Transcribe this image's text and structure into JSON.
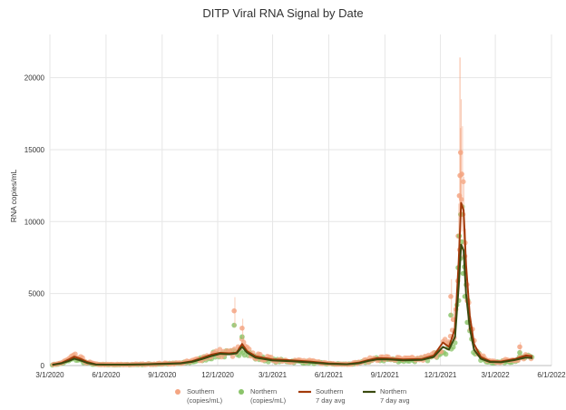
{
  "chart_data": {
    "type": "scatter",
    "title": "DITP Viral RNA Signal by Date",
    "xlabel": "",
    "ylabel": "RNA copies/mL",
    "x_ticks": [
      "3/1/2020",
      "6/1/2020",
      "9/1/2020",
      "12/1/2020",
      "3/1/2021",
      "6/1/2021",
      "9/1/2021",
      "12/1/2021",
      "3/1/2022",
      "6/1/2022"
    ],
    "x_range": [
      "2020-03-01",
      "2022-06-01"
    ],
    "ylim": [
      0,
      23000
    ],
    "y_ticks": [
      0,
      5000,
      10000,
      15000,
      20000
    ],
    "y_tick_labels": [
      "0",
      "5000",
      "10000",
      "15000",
      "20000"
    ],
    "grid": true,
    "legend": [
      {
        "label_line1": "Southern",
        "label_line2": "(copies/mL)",
        "kind": "marker",
        "color": "#f4a582"
      },
      {
        "label_line1": "Northern",
        "label_line2": "(copies/mL)",
        "kind": "marker",
        "color": "#8bc46a"
      },
      {
        "label_line1": "Southern",
        "label_line2": "7 day avg",
        "kind": "line",
        "color": "#a33a0a"
      },
      {
        "label_line1": "Northern",
        "label_line2": "7 day avg",
        "kind": "line",
        "color": "#3a4a10"
      }
    ],
    "series": [
      {
        "name": "Southern 7 day avg",
        "color": "#a33a0a",
        "points": [
          [
            "2020-03-05",
            60
          ],
          [
            "2020-03-20",
            180
          ],
          [
            "2020-04-01",
            420
          ],
          [
            "2020-04-10",
            620
          ],
          [
            "2020-04-20",
            480
          ],
          [
            "2020-05-01",
            250
          ],
          [
            "2020-05-15",
            90
          ],
          [
            "2020-06-01",
            70
          ],
          [
            "2020-07-01",
            70
          ],
          [
            "2020-08-01",
            90
          ],
          [
            "2020-09-01",
            130
          ],
          [
            "2020-10-01",
            170
          ],
          [
            "2020-10-20",
            300
          ],
          [
            "2020-11-05",
            520
          ],
          [
            "2020-11-20",
            750
          ],
          [
            "2020-12-05",
            880
          ],
          [
            "2020-12-20",
            850
          ],
          [
            "2021-01-01",
            900
          ],
          [
            "2021-01-10",
            1500
          ],
          [
            "2021-01-18",
            1000
          ],
          [
            "2021-02-01",
            650
          ],
          [
            "2021-03-01",
            420
          ],
          [
            "2021-04-01",
            360
          ],
          [
            "2021-05-01",
            280
          ],
          [
            "2021-06-01",
            150
          ],
          [
            "2021-07-01",
            100
          ],
          [
            "2021-07-20",
            200
          ],
          [
            "2021-08-05",
            380
          ],
          [
            "2021-08-20",
            520
          ],
          [
            "2021-09-05",
            500
          ],
          [
            "2021-10-01",
            420
          ],
          [
            "2021-11-01",
            460
          ],
          [
            "2021-11-20",
            700
          ],
          [
            "2021-12-05",
            1600
          ],
          [
            "2021-12-15",
            1300
          ],
          [
            "2021-12-25",
            2600
          ],
          [
            "2021-12-31",
            7200
          ],
          [
            "2022-01-04",
            11300
          ],
          [
            "2022-01-08",
            10800
          ],
          [
            "2022-01-12",
            7000
          ],
          [
            "2022-01-18",
            3500
          ],
          [
            "2022-01-25",
            1500
          ],
          [
            "2022-02-05",
            600
          ],
          [
            "2022-02-20",
            300
          ],
          [
            "2022-03-10",
            280
          ],
          [
            "2022-04-01",
            450
          ],
          [
            "2022-04-20",
            700
          ],
          [
            "2022-05-01",
            650
          ]
        ]
      },
      {
        "name": "Northern 7 day avg",
        "color": "#3a4a10",
        "points": [
          [
            "2020-03-05",
            50
          ],
          [
            "2020-03-20",
            150
          ],
          [
            "2020-04-01",
            320
          ],
          [
            "2020-04-10",
            480
          ],
          [
            "2020-04-20",
            360
          ],
          [
            "2020-05-01",
            180
          ],
          [
            "2020-05-15",
            70
          ],
          [
            "2020-06-01",
            60
          ],
          [
            "2020-07-01",
            60
          ],
          [
            "2020-08-01",
            80
          ],
          [
            "2020-09-01",
            110
          ],
          [
            "2020-10-01",
            150
          ],
          [
            "2020-10-20",
            260
          ],
          [
            "2020-11-05",
            450
          ],
          [
            "2020-11-20",
            650
          ],
          [
            "2020-12-05",
            820
          ],
          [
            "2020-12-20",
            780
          ],
          [
            "2021-01-01",
            850
          ],
          [
            "2021-01-10",
            1300
          ],
          [
            "2021-01-18",
            900
          ],
          [
            "2021-02-01",
            550
          ],
          [
            "2021-03-01",
            350
          ],
          [
            "2021-04-01",
            300
          ],
          [
            "2021-05-01",
            220
          ],
          [
            "2021-06-01",
            120
          ],
          [
            "2021-07-01",
            90
          ],
          [
            "2021-07-20",
            160
          ],
          [
            "2021-08-05",
            320
          ],
          [
            "2021-08-20",
            430
          ],
          [
            "2021-09-05",
            420
          ],
          [
            "2021-10-01",
            360
          ],
          [
            "2021-11-01",
            400
          ],
          [
            "2021-11-20",
            600
          ],
          [
            "2021-12-05",
            1300
          ],
          [
            "2021-12-15",
            1100
          ],
          [
            "2021-12-25",
            2000
          ],
          [
            "2021-12-31",
            5500
          ],
          [
            "2022-01-04",
            8400
          ],
          [
            "2022-01-08",
            8000
          ],
          [
            "2022-01-12",
            5000
          ],
          [
            "2022-01-18",
            2600
          ],
          [
            "2022-01-25",
            1100
          ],
          [
            "2022-02-05",
            480
          ],
          [
            "2022-02-20",
            250
          ],
          [
            "2022-03-10",
            230
          ],
          [
            "2022-04-01",
            380
          ],
          [
            "2022-04-20",
            560
          ],
          [
            "2022-05-01",
            520
          ]
        ]
      }
    ],
    "scatter_series": [
      {
        "name": "Southern (copies/mL)",
        "color": "#f4a582",
        "points": [
          [
            "2020-12-28",
            3800
          ],
          [
            "2021-01-10",
            2600
          ],
          [
            "2021-12-18",
            4800
          ],
          [
            "2021-12-22",
            3200
          ],
          [
            "2021-12-30",
            9000
          ],
          [
            "2022-01-01",
            11800
          ],
          [
            "2022-01-02",
            13200
          ],
          [
            "2022-01-03",
            14800
          ],
          [
            "2022-01-05",
            13300
          ],
          [
            "2022-01-07",
            10500
          ],
          [
            "2022-01-10",
            7600
          ],
          [
            "2022-01-14",
            4500
          ],
          [
            "2022-04-10",
            1300
          ]
        ]
      },
      {
        "name": "Northern (copies/mL)",
        "color": "#8bc46a",
        "points": [
          [
            "2020-12-28",
            2800
          ],
          [
            "2021-01-10",
            2000
          ],
          [
            "2021-12-18",
            3500
          ],
          [
            "2021-12-30",
            6800
          ],
          [
            "2022-01-01",
            9000
          ],
          [
            "2022-01-03",
            10500
          ],
          [
            "2022-01-05",
            8600
          ],
          [
            "2022-01-07",
            6400
          ],
          [
            "2022-01-10",
            4800
          ],
          [
            "2022-01-14",
            3000
          ],
          [
            "2022-04-10",
            900
          ]
        ]
      }
    ],
    "error_bar_peak": {
      "x": "2022-01-02",
      "y_low": 9000,
      "y_high": 21400
    }
  }
}
